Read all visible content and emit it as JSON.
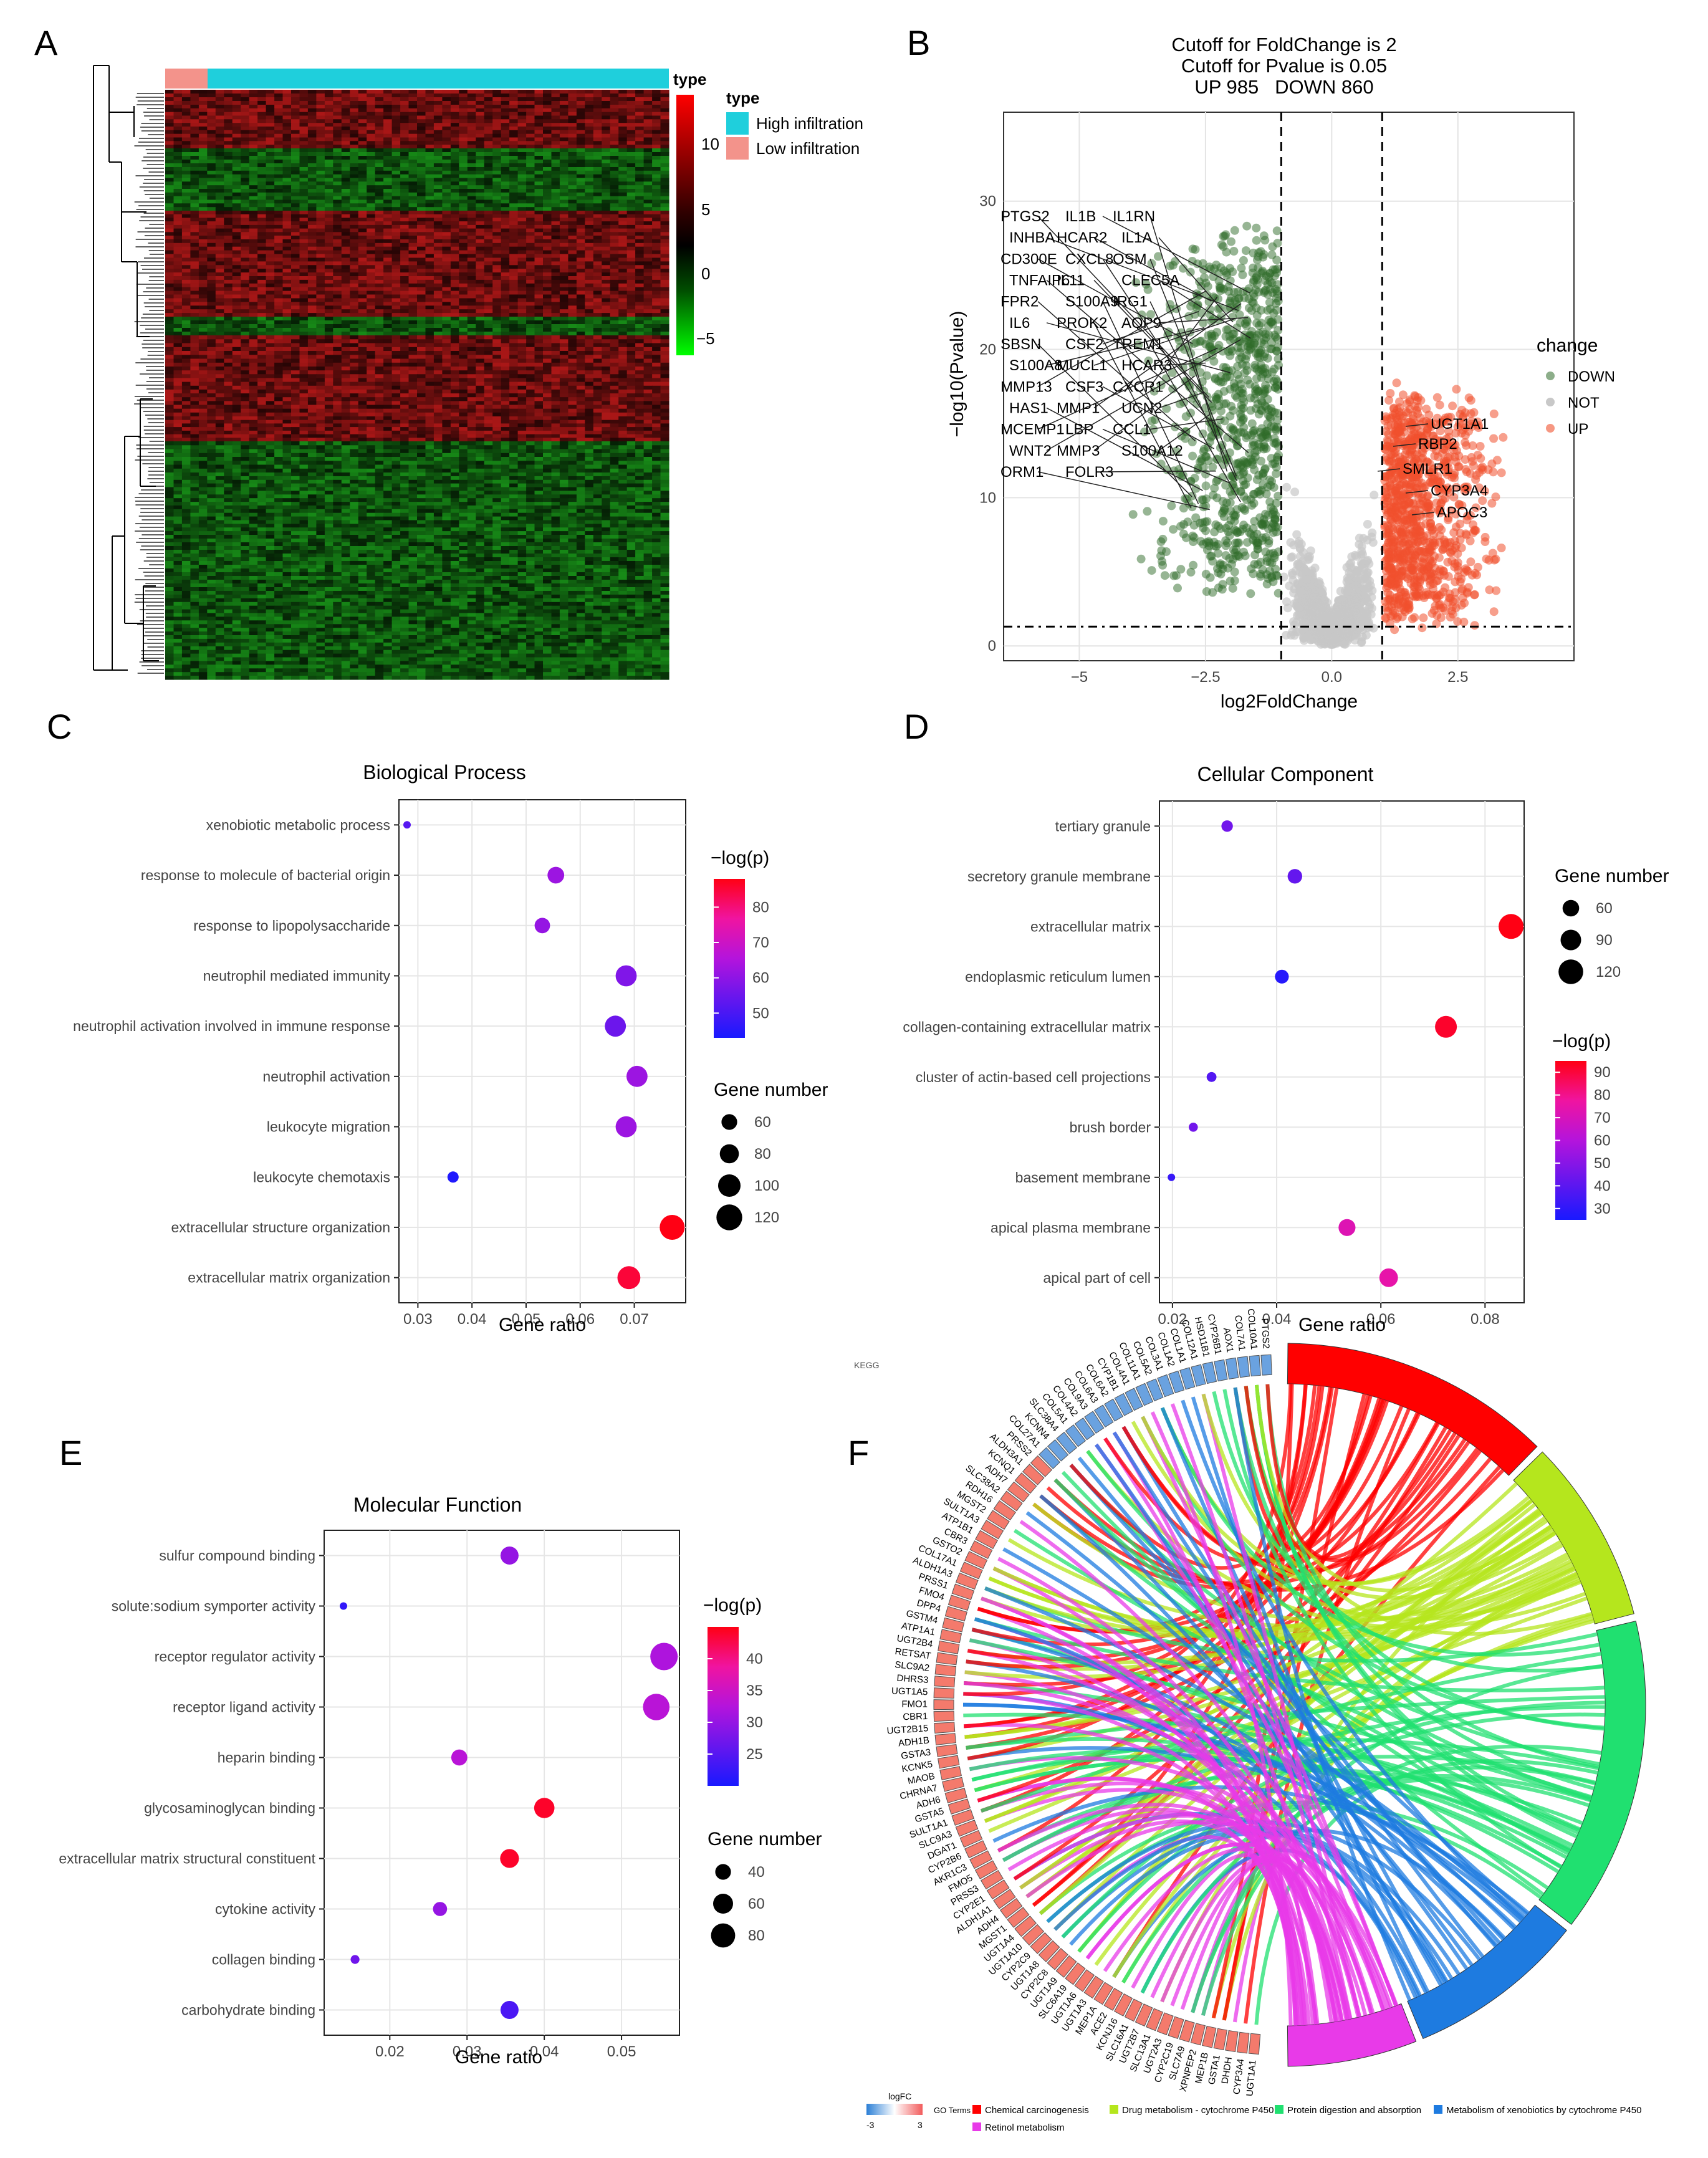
{
  "panel_letters": [
    "A",
    "B",
    "C",
    "D",
    "E",
    "F"
  ],
  "heatmap": {
    "type_header": "type",
    "legend_title": "type",
    "legend": [
      {
        "label": "High infiltration",
        "color": "#1fcfdc"
      },
      {
        "label": "Low infiltration",
        "color": "#f3938b"
      }
    ],
    "colorbar_ticks": [
      "10",
      "5",
      "0",
      "−5"
    ]
  },
  "kegg_label": "KEGG",
  "chart_data": [
    {
      "id": "volcano",
      "type": "scatter",
      "title_lines": [
        "Cutoff for FoldChange is 2",
        "Cutoff for Pvalue is 0.05",
        "UP 985   DOWN 860"
      ],
      "xlabel": "log2FoldChange",
      "ylabel": "−log10(Pvalue)",
      "xlim": [
        -6.5,
        4.8
      ],
      "ylim": [
        -1,
        36
      ],
      "xticks": [
        -5,
        -2.5,
        0,
        2.5
      ],
      "xtick_labels": [
        "−5",
        "−2.5",
        "0.0",
        "2.5"
      ],
      "yticks": [
        0,
        10,
        20,
        30
      ],
      "thresholds": {
        "x": [
          -1,
          1
        ],
        "y": 1.3
      },
      "legend_title": "change",
      "legend": [
        {
          "label": "DOWN",
          "color": "#2f6b2a"
        },
        {
          "label": "NOT",
          "color": "#c8c8c8"
        },
        {
          "label": "UP",
          "color": "#f0512e"
        }
      ],
      "gene_labels_down": [
        "PTGS2",
        "IL1B",
        "IL1RN",
        "INHBA",
        "HCAR2",
        "IL1A",
        "CD300E",
        "CXCL8",
        "OSM",
        "TNFAIP6",
        "IL11",
        "CLEC5A",
        "FPR2",
        "S100A9",
        "IRG1",
        "IL6",
        "PROK2",
        "AQP9",
        "SBSN",
        "CSF2",
        "TREM1",
        "S100A8",
        "MUCL1",
        "HCAR3",
        "MMP13",
        "CSF3",
        "CXCR1",
        "HAS1",
        "MMP1",
        "UCN2",
        "MCEMP1",
        "LBP",
        "CCL1",
        "WNT2",
        "MMP3",
        "S100A12",
        "ORM1",
        "FOLR3"
      ],
      "gene_labels_up": [
        "UGT1A1",
        "RBP2",
        "SMLR1",
        "CYP3A4",
        "APOC3"
      ]
    },
    {
      "id": "bp",
      "type": "scatter",
      "title": "Biological Process",
      "xlabel": "Gene ratio",
      "xlim": [
        0.0265,
        0.0795
      ],
      "xticks": [
        0.03,
        0.04,
        0.05,
        0.06,
        0.07
      ],
      "xtick_labels": [
        "0.03",
        "0.04",
        "0.05",
        "0.06",
        "0.07"
      ],
      "categories": [
        "xenobiotic metabolic process",
        "response to molecule of bacterial origin",
        "response to lipopolysaccharide",
        "neutrophil mediated immunity",
        "neutrophil activation involved in immune response",
        "neutrophil activation",
        "leukocyte migration",
        "leukocyte chemotaxis",
        "extracellular structure organization",
        "extracellular matrix organization"
      ],
      "x": [
        0.028,
        0.0555,
        0.053,
        0.0685,
        0.0665,
        0.0705,
        0.0685,
        0.0365,
        0.077,
        0.069
      ],
      "neglogp": [
        52,
        62,
        61,
        58,
        55,
        62,
        62,
        44,
        90,
        85
      ],
      "gene_number": [
        41,
        88,
        82,
        110,
        110,
        110,
        110,
        60,
        130,
        120
      ],
      "color_legend_title": "−log(p)",
      "color_range": [
        43,
        88
      ],
      "color_ticks": [
        50,
        60,
        70,
        80
      ],
      "size_legend_title": "Gene number",
      "size_ticks": [
        60,
        80,
        100,
        120
      ]
    },
    {
      "id": "cc",
      "type": "scatter",
      "title": "Cellular Component",
      "xlabel": "Gene ratio",
      "xlim": [
        0.0175,
        0.0875
      ],
      "xticks": [
        0.02,
        0.04,
        0.06,
        0.08
      ],
      "xtick_labels": [
        "0.02",
        "0.04",
        "0.06",
        "0.08"
      ],
      "categories": [
        "tertiary granule",
        "secretory granule membrane",
        "extracellular matrix",
        "endoplasmic reticulum lumen",
        "collagen-containing extracellular matrix",
        "cluster of actin-based cell projections",
        "brush border",
        "basement membrane",
        "apical plasma membrane",
        "apical part of cell"
      ],
      "x": [
        0.0305,
        0.0435,
        0.085,
        0.041,
        0.0725,
        0.0275,
        0.024,
        0.0198,
        0.0535,
        0.0615
      ],
      "neglogp": [
        45,
        42,
        95,
        28,
        92,
        38,
        45,
        32,
        72,
        75
      ],
      "gene_number": [
        55,
        75,
        140,
        70,
        120,
        45,
        40,
        30,
        90,
        100
      ],
      "color_legend_title": "−log(p)",
      "color_range": [
        25,
        95
      ],
      "color_ticks": [
        30,
        40,
        50,
        60,
        70,
        80,
        90
      ],
      "size_legend_title": "Gene number",
      "size_ticks": [
        60,
        90,
        120
      ]
    },
    {
      "id": "mf",
      "type": "scatter",
      "title": "Molecular Function",
      "xlabel": "Gene ratio",
      "xlim": [
        0.0115,
        0.0575
      ],
      "xticks": [
        0.02,
        0.03,
        0.04,
        0.05
      ],
      "xtick_labels": [
        "0.02",
        "0.03",
        "0.04",
        "0.05"
      ],
      "categories": [
        "sulfur compound binding",
        "solute:sodium symporter activity",
        "receptor regulator activity",
        "receptor ligand activity",
        "heparin binding",
        "glycosaminoglycan binding",
        "extracellular matrix structural constituent",
        "cytokine activity",
        "collagen binding",
        "carbohydrate binding"
      ],
      "x": [
        0.0355,
        0.014,
        0.0555,
        0.0545,
        0.029,
        0.04,
        0.0355,
        0.0265,
        0.0155,
        0.0355
      ],
      "neglogp": [
        30,
        22,
        32,
        33,
        33,
        44,
        44,
        30,
        27,
        24
      ],
      "gene_number": [
        62,
        25,
        95,
        92,
        55,
        70,
        65,
        48,
        30,
        62
      ],
      "color_legend_title": "−log(p)",
      "color_range": [
        20,
        45
      ],
      "color_ticks": [
        25,
        30,
        35,
        40
      ],
      "size_legend_title": "Gene number",
      "size_ticks": [
        40,
        60,
        80
      ]
    },
    {
      "id": "chord",
      "type": "chord",
      "genes": [
        "UGT1A1",
        "CYP3A4",
        "DHDH",
        "GSTA1",
        "MEP1B",
        "XPNPEP2",
        "SLC7A9",
        "CYP2C19",
        "UGT2A3",
        "SLC13A1",
        "UGT2B7",
        "SLC16A1",
        "KCNJ16",
        "ACE2",
        "MEP1A",
        "UGT1A3",
        "UGT1A6",
        "SLC6A19",
        "UGT1A9",
        "CYP2C8",
        "UGT1A8",
        "CYP2C9",
        "UGT1A10",
        "UGT1A4",
        "MGST1",
        "ADH4",
        "ALDH1A1",
        "CYP2E1",
        "PRSS3",
        "FMO5",
        "AKR1C3",
        "CYP2B6",
        "DGAT1",
        "SLC9A3",
        "SULT1A1",
        "GSTA5",
        "ADH6",
        "CHRNA7",
        "MAOB",
        "KCNK5",
        "GSTA3",
        "ADH1B",
        "UGT2B15",
        "CBR1",
        "FMO1",
        "UGT1A5",
        "DHRS3",
        "SLC9A2",
        "RETSAT",
        "UGT2B4",
        "ATP1A1",
        "GSTM4",
        "DPP4",
        "FMO4",
        "PRSS1",
        "ALDH1A3",
        "COL17A1",
        "GSTO2",
        "CBR3",
        "ATP1B1",
        "SULT1A3",
        "MGST2",
        "RDH16",
        "SLC38A2",
        "ADH7",
        "KCNQ1",
        "ALDH3A1",
        "PRSS2",
        "COL27A1",
        "KCNN4",
        "SLC38A4",
        "COL5A1",
        "COL4A2",
        "COL9A3",
        "COL6A3",
        "COL6A2",
        "CYP1B1",
        "COL4A1",
        "COL11A1",
        "COL5A2",
        "COL3A1",
        "COL1A2",
        "COL1A1",
        "COL12A1",
        "HSD11B1",
        "CYP26B1",
        "AOX1",
        "COL7A1",
        "COL10A1",
        "PTGS2"
      ],
      "logfc_title": "logFC",
      "logfc_range": [
        "-3",
        "3"
      ],
      "go_terms_title": "GO Terms",
      "terms": [
        {
          "name": "Chemical carcinogenesis",
          "color": "#ff0000"
        },
        {
          "name": "Drug metabolism - cytochrome P450",
          "color": "#b5e61d"
        },
        {
          "name": "Protein digestion and absorption",
          "color": "#20e070"
        },
        {
          "name": "Metabolism of xenobiotics by cytochrome P450",
          "color": "#1e7be0"
        },
        {
          "name": "Retinol metabolism",
          "color": "#e83ae8"
        }
      ]
    }
  ]
}
